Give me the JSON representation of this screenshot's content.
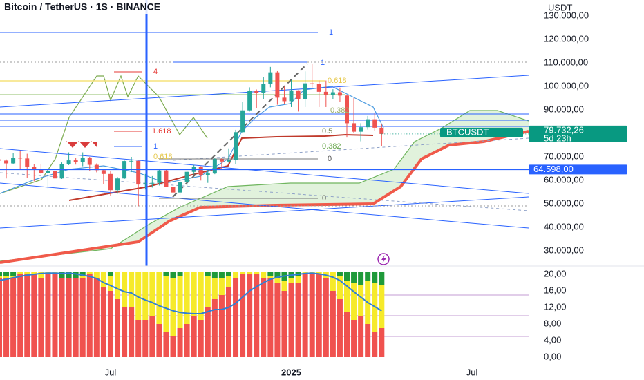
{
  "header": {
    "title": "Bitcoin / TetherUS · 1S · BINANCE",
    "currency": "USDT"
  },
  "chart_data": [
    {
      "type": "candlestick",
      "up_color": "#26a69a",
      "down_color": "#ef5350",
      "open": [
        68900,
        68400,
        67200,
        69600,
        69300,
        65600,
        64900,
        63100,
        63900,
        60800,
        66900,
        68500,
        67800,
        69600,
        66600,
        64300,
        62700,
        55800,
        60800,
        68200,
        68300,
        58200,
        58700,
        58900,
        64200,
        57300,
        54800,
        59100,
        63600,
        65600,
        62100,
        62900,
        69000,
        68000,
        68800,
        80500,
        89800,
        98000,
        97200,
        101000,
        106000,
        95200,
        93700,
        98300,
        94500,
        101300,
        101100,
        97700,
        96500,
        97500,
        96100,
        84300,
        80700,
        82600,
        86000,
        82400
      ],
      "high": [
        73800,
        68900,
        71700,
        72700,
        71300,
        66900,
        67000,
        64700,
        65500,
        67600,
        71900,
        69500,
        71900,
        70000,
        67200,
        64500,
        63800,
        61400,
        68400,
        70000,
        68300,
        62700,
        61800,
        65000,
        64900,
        58000,
        60600,
        64100,
        66500,
        66000,
        64500,
        69400,
        69500,
        73600,
        81500,
        93500,
        99600,
        98700,
        104000,
        108300,
        106500,
        99900,
        102700,
        98400,
        106400,
        109600,
        102500,
        102500,
        98800,
        99500,
        96500,
        95000,
        84300,
        87400,
        88700,
        84000
      ],
      "low": [
        64500,
        60800,
        66800,
        64500,
        61000,
        59600,
        62700,
        56600,
        60200,
        60600,
        66500,
        66700,
        66000,
        64100,
        63400,
        58400,
        53500,
        54300,
        60600,
        63500,
        49000,
        56100,
        56900,
        57800,
        57200,
        52600,
        53700,
        57500,
        62500,
        59900,
        58900,
        62600,
        65000,
        67500,
        66800,
        80300,
        89300,
        90800,
        94500,
        99600,
        92200,
        92500,
        91200,
        89300,
        91200,
        99500,
        91200,
        91200,
        94700,
        93400,
        78200,
        80000,
        76600,
        81600,
        81200,
        74500
      ],
      "close": [
        68400,
        67200,
        69600,
        69300,
        65600,
        64900,
        63100,
        63900,
        60800,
        66900,
        68500,
        67800,
        69600,
        66600,
        64300,
        62700,
        55800,
        60800,
        68200,
        68300,
        58200,
        58700,
        58900,
        64200,
        57300,
        54800,
        59100,
        63600,
        65600,
        62100,
        62900,
        69000,
        68000,
        68800,
        80500,
        89800,
        98000,
        97200,
        101000,
        106000,
        95200,
        93700,
        98300,
        94500,
        101300,
        101100,
        97700,
        96500,
        97500,
        96100,
        84300,
        80700,
        82600,
        86000,
        82400,
        79732.26
      ],
      "ylim": [
        23500,
        136800
      ],
      "yticks": [
        {
          "value": 130000,
          "label": "130.000,00"
        },
        {
          "value": 120000,
          "label": "120.000,00"
        },
        {
          "value": 110000,
          "label": "110.000,00"
        },
        {
          "value": 100000,
          "label": "100.000,00"
        },
        {
          "value": 90000,
          "label": "90.000,00"
        },
        {
          "value": 70000,
          "label": "70.000,00"
        },
        {
          "value": 60000,
          "label": "60.000,00"
        },
        {
          "value": 50000,
          "label": "50.000,00"
        },
        {
          "value": 40000,
          "label": "40.000,00"
        },
        {
          "value": 30000,
          "label": "30.000,00"
        }
      ],
      "xticks": [
        {
          "value": 16,
          "label": "Jul"
        },
        {
          "value": 42,
          "label": "2025"
        },
        {
          "value": 68,
          "label": "Jul"
        }
      ],
      "last_price": {
        "symbol": "BTCUSDT",
        "value": 79732.26,
        "value_label": "79.732,26",
        "countdown": "5d 23h",
        "color": "#089981"
      },
      "price_line": {
        "value": 64598,
        "value_label": "64.598,00",
        "color": "#2962ff"
      },
      "annotations": [
        {
          "text": "1",
          "color": "#2962ff"
        },
        {
          "text": "1",
          "color": "#2962ff"
        },
        {
          "text": "0.618",
          "color": "#e6c84a"
        },
        {
          "text": "4",
          "color": "#e53935"
        },
        {
          "text": "1.618",
          "color": "#e53935"
        },
        {
          "text": "0.5",
          "color": "#7a8a5a"
        },
        {
          "text": "0.382",
          "color": "#6aa84f"
        },
        {
          "text": "0",
          "color": "#555555"
        },
        {
          "text": "1",
          "color": "#2962ff"
        },
        {
          "text": "0.618",
          "color": "#e6c84a"
        },
        {
          "text": "0",
          "color": "#555555"
        },
        {
          "text": "0.382",
          "color": "#9ab06a"
        }
      ]
    },
    {
      "type": "stacked-bar",
      "series": [
        {
          "color": "#f0524f",
          "values": [
            19,
            19,
            19,
            20,
            20,
            20,
            19,
            20,
            20,
            19,
            19,
            19,
            19,
            20,
            19,
            17,
            16,
            14,
            12,
            12,
            9,
            9,
            10,
            8,
            6,
            5,
            7,
            8,
            10,
            9,
            12,
            14,
            15,
            17,
            19,
            20,
            20,
            20,
            19,
            19,
            18,
            16,
            18,
            18,
            20,
            20,
            20,
            19,
            16,
            14,
            11,
            9,
            10,
            8,
            6,
            7
          ]
        },
        {
          "color": "#f6ea2a",
          "values": [
            0.5,
            0.5,
            0.5,
            0.5,
            0.5,
            0.5,
            1.5,
            0.5,
            0.5,
            0,
            0,
            0,
            0.5,
            0.5,
            1.5,
            3.5,
            3.5,
            6.5,
            8.5,
            8.5,
            11.5,
            11.5,
            10.5,
            12.5,
            13.5,
            14,
            12.5,
            12.5,
            10.5,
            11.5,
            7.5,
            5,
            4,
            2.5,
            1.5,
            0.5,
            0.5,
            0.5,
            1.5,
            0.5,
            1,
            2.5,
            1,
            1.5,
            0.5,
            0.5,
            0.5,
            1.5,
            4.5,
            5.5,
            7.5,
            9,
            7.5,
            10.5,
            12,
            10.5
          ]
        },
        {
          "color": "#1f9a3a",
          "values": [
            1,
            1,
            1,
            0,
            0,
            0,
            0,
            0,
            0,
            1.5,
            1.5,
            1.5,
            1,
            0,
            0,
            0,
            1,
            0,
            0,
            0,
            0,
            0,
            0,
            0,
            1,
            1.5,
            1,
            0,
            0,
            0,
            1,
            1.5,
            1.5,
            1,
            0,
            0,
            0,
            0,
            0,
            1,
            1.5,
            2,
            1.5,
            1,
            0,
            0,
            0,
            0,
            0,
            1,
            2,
            2.5,
            3,
            2,
            2.5,
            3
          ]
        }
      ],
      "line": {
        "color": "#2f7fd6",
        "values": [
          18.5,
          18.8,
          19.2,
          19.5,
          19.8,
          20,
          20.2,
          20.3,
          20.3,
          20.2,
          20.3,
          20.1,
          19.8,
          19.5,
          19,
          18,
          17.3,
          16.5,
          15.8,
          15.5,
          14.5,
          13.8,
          13.2,
          12.4,
          11.8,
          11.2,
          10.8,
          10.6,
          10.5,
          10.5,
          11,
          11.5,
          11.5,
          12,
          13,
          14.5,
          16,
          17,
          18,
          18.8,
          19.3,
          19.6,
          19.8,
          20,
          20.2,
          20.3,
          20.1,
          19.8,
          19.3,
          18.5,
          17.2,
          15.8,
          14.5,
          13.2,
          12.2,
          11.2
        ]
      },
      "levels": [
        15,
        10,
        5
      ],
      "level_color": "#c39bd3",
      "ylim": [
        0,
        20
      ],
      "yticks": [
        {
          "value": 20,
          "label": "20,00"
        },
        {
          "value": 16,
          "label": "16,00"
        },
        {
          "value": 12,
          "label": "12,00"
        },
        {
          "value": 8,
          "label": "8,00"
        },
        {
          "value": 4,
          "label": "4,00"
        },
        {
          "value": 0,
          "label": "0,00"
        }
      ]
    }
  ]
}
